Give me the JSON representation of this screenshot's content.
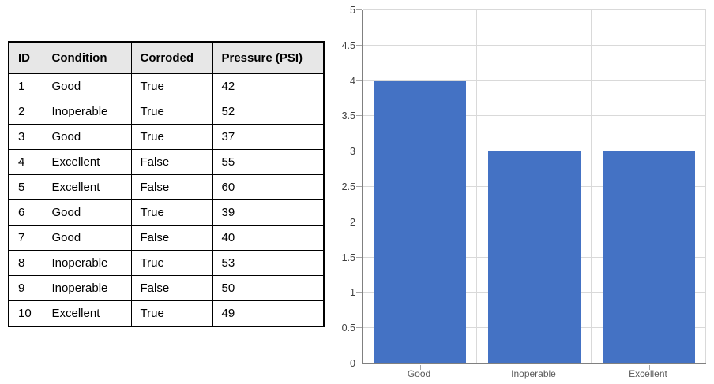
{
  "table": {
    "columns": [
      "ID",
      "Condition",
      "Corroded",
      "Pressure (PSI)"
    ],
    "rows": [
      [
        "1",
        "Good",
        "True",
        "42"
      ],
      [
        "2",
        "Inoperable",
        "True",
        "52"
      ],
      [
        "3",
        "Good",
        "True",
        "37"
      ],
      [
        "4",
        "Excellent",
        "False",
        "55"
      ],
      [
        "5",
        "Excellent",
        "False",
        "60"
      ],
      [
        "6",
        "Good",
        "True",
        "39"
      ],
      [
        "7",
        "Good",
        "False",
        "40"
      ],
      [
        "8",
        "Inoperable",
        "True",
        "53"
      ],
      [
        "9",
        "Inoperable",
        "False",
        "50"
      ],
      [
        "10",
        "Excellent",
        "True",
        "49"
      ]
    ],
    "header_bg": "#E7E7E7",
    "border_color": "#000000"
  },
  "chart_data": {
    "type": "bar",
    "categories": [
      "Good",
      "Inoperable",
      "Excellent"
    ],
    "values": [
      4,
      3,
      3
    ],
    "title": "",
    "xlabel": "",
    "ylabel": "",
    "ylim": [
      0,
      5
    ],
    "ytick_step": 0.5,
    "ytick_labels": [
      "0",
      "0.5",
      "1",
      "1.5",
      "2",
      "2.5",
      "3",
      "3.5",
      "4",
      "4.5",
      "5"
    ],
    "grid": true,
    "legend": false,
    "bar_color": "#4472C4",
    "gridline_color": "#D9D9D9",
    "axis_color": "#808080",
    "tick_color": "#A6A6A6",
    "ytick_label_color": "#404040",
    "category_label_color": "#595959"
  }
}
